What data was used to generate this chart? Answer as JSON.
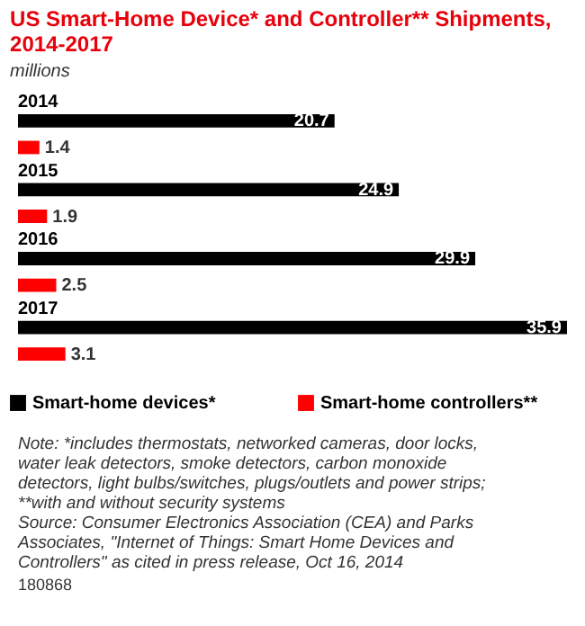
{
  "chart_data": {
    "type": "bar",
    "orientation": "horizontal",
    "title": "US Smart-Home Device* and Controller** Shipments, 2014-2017",
    "subtitle": "millions",
    "categories": [
      "2014",
      "2015",
      "2016",
      "2017"
    ],
    "series": [
      {
        "name": "Smart-home devices*",
        "color": "#000000",
        "values": [
          20.7,
          24.9,
          29.9,
          35.9
        ]
      },
      {
        "name": "Smart-home controllers**",
        "color": "#ff0000",
        "values": [
          1.4,
          1.9,
          2.5,
          3.1
        ]
      }
    ],
    "data_labels": true,
    "legend": "bottom",
    "annotations": [
      "Note: *includes thermostats, networked cameras, door locks, water leak detectors, smoke detectors, carbon monoxide detectors, light bulbs/switches, plugs/outlets and power strips; **with and without security systems",
      "Source: Consumer Electronics Association (CEA) and Parks Associates, \"Internet of Things: Smart Home Devices and Controllers\" as cited in press release, Oct 16, 2014",
      "180868"
    ]
  }
}
